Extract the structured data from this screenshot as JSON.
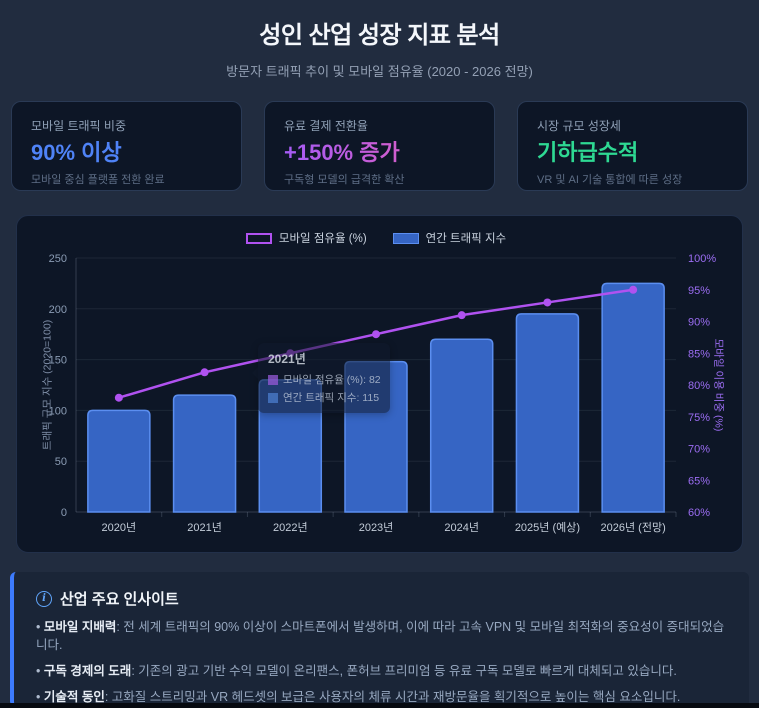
{
  "header": {
    "title": "성인 산업 성장 지표 분석",
    "subtitle": "방문자 트래픽 추이 및 모바일 점유율 (2020 - 2026 전망)"
  },
  "stat_cards": [
    {
      "label": "모바일 트래픽 비중",
      "value": "90% 이상",
      "desc": "모바일 중심 플랫폼 전환 완료",
      "value_color": "#4f83f7"
    },
    {
      "label": "유료 결제 전환율",
      "value": "+150% 증가",
      "desc": "구독형 모델의 급격한 확산",
      "value_gradient": [
        "#a55cf6",
        "#ee5fb4"
      ]
    },
    {
      "label": "시장 규모 성장세",
      "value": "기하급수적",
      "desc": "VR 및 AI 기술 통합에 따른 성장",
      "value_color": "#2ed993"
    }
  ],
  "chart_data": {
    "type": "bar",
    "subtype": "combo-bar-line",
    "categories": [
      "2020년",
      "2021년",
      "2022년",
      "2023년",
      "2024년",
      "2025년 (예상)",
      "2026년 (전망)"
    ],
    "series": [
      {
        "name": "모바일 점유율 (%)",
        "type": "line",
        "axis": "right",
        "values": [
          78,
          82,
          85,
          88,
          91,
          93,
          95
        ],
        "color": "#b052f0"
      },
      {
        "name": "연간 트래픽 지수",
        "type": "bar",
        "axis": "left",
        "values": [
          100,
          115,
          130,
          148,
          170,
          195,
          225
        ],
        "color": "#3665c4",
        "border_color": "#5b8ef0"
      }
    ],
    "left_axis": {
      "title": "트래픽 규모 지수 (2020=100)",
      "min": 0,
      "max": 250,
      "ticks": [
        0,
        50,
        100,
        150,
        200,
        250
      ],
      "tick_suffix": ""
    },
    "right_axis": {
      "title": "모바일 이용 비중 (%)",
      "min": 60,
      "max": 100,
      "ticks": [
        60,
        65,
        70,
        75,
        80,
        85,
        90,
        95,
        100
      ],
      "tick_suffix": "%"
    },
    "grid": true,
    "legend_position": "top"
  },
  "tooltip": {
    "title": "2021년",
    "rows": [
      {
        "swatch": "rgba(150,90,215,0.75)",
        "text": "모바일 점유율 (%): 82"
      },
      {
        "swatch": "rgba(75,125,205,0.75)",
        "text": "연간 트래픽 지수: 115"
      }
    ]
  },
  "insights": {
    "title": "산업 주요 인사이트",
    "items": [
      {
        "term": "모바일 지배력",
        "text": ": 전 세계 트래픽의 90% 이상이 스마트폰에서 발생하며, 이에 따라 고속 VPN 및 모바일 최적화의 중요성이 증대되었습니다."
      },
      {
        "term": "구독 경제의 도래",
        "text": ": 기존의 광고 기반 수익 모델이 온리팬스, 폰허브 프리미엄 등 유료 구독 모델로 빠르게 대체되고 있습니다."
      },
      {
        "term": "기술적 동인",
        "text": ": 고화질 스트리밍과 VR 헤드셋의 보급은 사용자의 체류 시간과 재방문율을 획기적으로 높이는 핵심 요소입니다."
      }
    ]
  },
  "colors": {
    "page_bg": "#212c3f",
    "panel_bg": "#0d1626",
    "accent_blue": "#3d7bfd",
    "line_purple": "#b052f0",
    "bar_blue": "#3665c4",
    "right_axis_label": "#9b6df2",
    "left_axis_label": "#8b9cb4"
  }
}
